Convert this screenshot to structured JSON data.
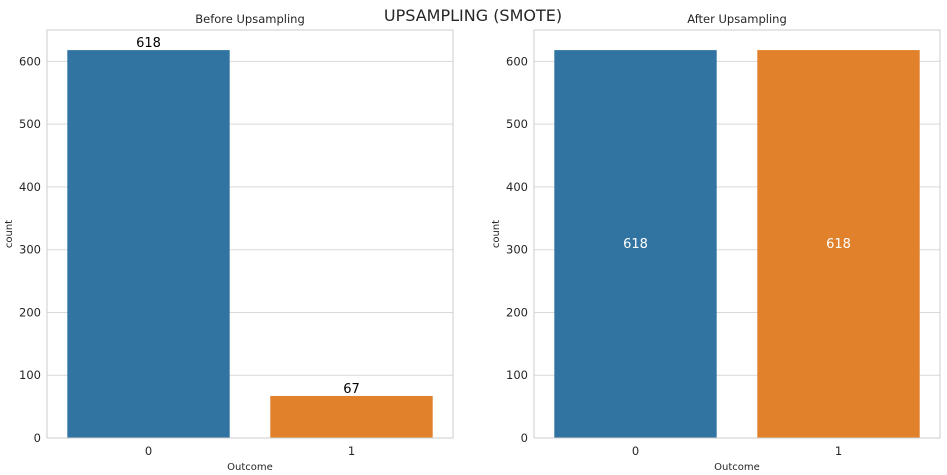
{
  "figure": {
    "title": "UPSAMPLING (SMOTE)"
  },
  "colors": {
    "series": [
      "#3274a1",
      "#e1812c"
    ],
    "grid": "#d9d9d9",
    "spine": "#cccccc",
    "text": "#262626"
  },
  "chart_data": [
    {
      "type": "bar",
      "title": "Before Upsampling",
      "xlabel": "Outcome",
      "ylabel": "count",
      "categories": [
        "0",
        "1"
      ],
      "values": [
        618,
        67
      ],
      "ylim": [
        0,
        650
      ],
      "yticks": [
        0,
        100,
        200,
        300,
        400,
        500,
        600
      ],
      "grid": "horizontal",
      "bar_labels": [
        "618",
        "67"
      ],
      "bar_label_position": "above",
      "bar_label_color": "#000000"
    },
    {
      "type": "bar",
      "title": "After Upsampling",
      "xlabel": "Outcome",
      "ylabel": "count",
      "categories": [
        "0",
        "1"
      ],
      "values": [
        618,
        618
      ],
      "ylim": [
        0,
        650
      ],
      "yticks": [
        0,
        100,
        200,
        300,
        400,
        500,
        600
      ],
      "grid": "horizontal",
      "bar_labels": [
        "618",
        "618"
      ],
      "bar_label_position": "center",
      "bar_label_color": "#ffffff"
    }
  ]
}
